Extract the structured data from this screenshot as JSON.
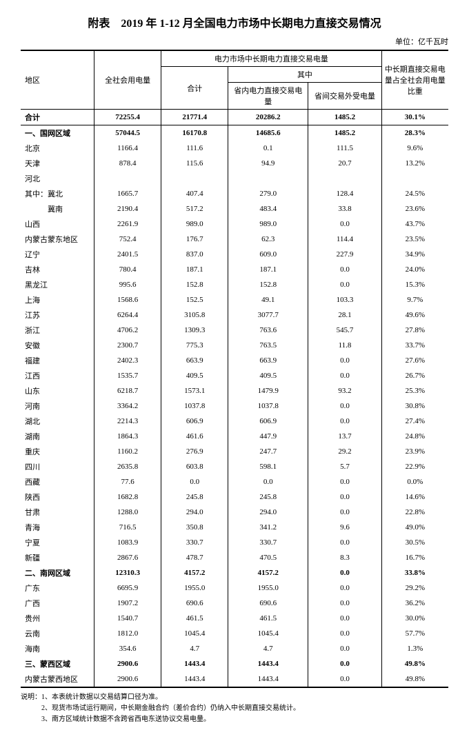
{
  "title": "附表　2019 年 1-12 月全国电力市场中长期电力直接交易情况",
  "unit": "单位：亿千瓦时",
  "headers": {
    "region": "地区",
    "total_consumption": "全社会用电量",
    "market_group": "电力市场中长期电力直接交易电量",
    "sum": "合计",
    "of_which": "其中",
    "intra": "省内电力直接交易电量",
    "inter": "省间交易外受电量",
    "ratio": "中长期直接交易电量占全社会用电量比重"
  },
  "sections": [
    {
      "label": "合计",
      "total": "72255.4",
      "sum": "21771.4",
      "intra": "20286.2",
      "inter": "1485.2",
      "ratio": "30.1%",
      "bold": true,
      "isHeader": true
    },
    {
      "label": "一、国网区域",
      "total": "57044.5",
      "sum": "16170.8",
      "intra": "14685.6",
      "inter": "1485.2",
      "ratio": "28.3%",
      "bold": true
    },
    {
      "label": "北京",
      "total": "1166.4",
      "sum": "111.6",
      "intra": "0.1",
      "inter": "111.5",
      "ratio": "9.6%"
    },
    {
      "label": "天津",
      "total": "878.4",
      "sum": "115.6",
      "intra": "94.9",
      "inter": "20.7",
      "ratio": "13.2%"
    },
    {
      "label": "河北",
      "total": "",
      "sum": "",
      "intra": "",
      "inter": "",
      "ratio": ""
    },
    {
      "label": "其中：冀北",
      "total": "1665.7",
      "sum": "407.4",
      "intra": "279.0",
      "inter": "128.4",
      "ratio": "24.5%"
    },
    {
      "label": "　　　冀南",
      "total": "2190.4",
      "sum": "517.2",
      "intra": "483.4",
      "inter": "33.8",
      "ratio": "23.6%"
    },
    {
      "label": "山西",
      "total": "2261.9",
      "sum": "989.0",
      "intra": "989.0",
      "inter": "0.0",
      "ratio": "43.7%"
    },
    {
      "label": "内蒙古蒙东地区",
      "total": "752.4",
      "sum": "176.7",
      "intra": "62.3",
      "inter": "114.4",
      "ratio": "23.5%"
    },
    {
      "label": "辽宁",
      "total": "2401.5",
      "sum": "837.0",
      "intra": "609.0",
      "inter": "227.9",
      "ratio": "34.9%"
    },
    {
      "label": "吉林",
      "total": "780.4",
      "sum": "187.1",
      "intra": "187.1",
      "inter": "0.0",
      "ratio": "24.0%"
    },
    {
      "label": "黑龙江",
      "total": "995.6",
      "sum": "152.8",
      "intra": "152.8",
      "inter": "0.0",
      "ratio": "15.3%"
    },
    {
      "label": "上海",
      "total": "1568.6",
      "sum": "152.5",
      "intra": "49.1",
      "inter": "103.3",
      "ratio": "9.7%"
    },
    {
      "label": "江苏",
      "total": "6264.4",
      "sum": "3105.8",
      "intra": "3077.7",
      "inter": "28.1",
      "ratio": "49.6%"
    },
    {
      "label": "浙江",
      "total": "4706.2",
      "sum": "1309.3",
      "intra": "763.6",
      "inter": "545.7",
      "ratio": "27.8%"
    },
    {
      "label": "安徽",
      "total": "2300.7",
      "sum": "775.3",
      "intra": "763.5",
      "inter": "11.8",
      "ratio": "33.7%"
    },
    {
      "label": "福建",
      "total": "2402.3",
      "sum": "663.9",
      "intra": "663.9",
      "inter": "0.0",
      "ratio": "27.6%"
    },
    {
      "label": "江西",
      "total": "1535.7",
      "sum": "409.5",
      "intra": "409.5",
      "inter": "0.0",
      "ratio": "26.7%"
    },
    {
      "label": "山东",
      "total": "6218.7",
      "sum": "1573.1",
      "intra": "1479.9",
      "inter": "93.2",
      "ratio": "25.3%"
    },
    {
      "label": "河南",
      "total": "3364.2",
      "sum": "1037.8",
      "intra": "1037.8",
      "inter": "0.0",
      "ratio": "30.8%"
    },
    {
      "label": "湖北",
      "total": "2214.3",
      "sum": "606.9",
      "intra": "606.9",
      "inter": "0.0",
      "ratio": "27.4%"
    },
    {
      "label": "湖南",
      "total": "1864.3",
      "sum": "461.6",
      "intra": "447.9",
      "inter": "13.7",
      "ratio": "24.8%"
    },
    {
      "label": "重庆",
      "total": "1160.2",
      "sum": "276.9",
      "intra": "247.7",
      "inter": "29.2",
      "ratio": "23.9%"
    },
    {
      "label": "四川",
      "total": "2635.8",
      "sum": "603.8",
      "intra": "598.1",
      "inter": "5.7",
      "ratio": "22.9%"
    },
    {
      "label": "西藏",
      "total": "77.6",
      "sum": "0.0",
      "intra": "0.0",
      "inter": "0.0",
      "ratio": "0.0%"
    },
    {
      "label": "陕西",
      "total": "1682.8",
      "sum": "245.8",
      "intra": "245.8",
      "inter": "0.0",
      "ratio": "14.6%"
    },
    {
      "label": "甘肃",
      "total": "1288.0",
      "sum": "294.0",
      "intra": "294.0",
      "inter": "0.0",
      "ratio": "22.8%"
    },
    {
      "label": "青海",
      "total": "716.5",
      "sum": "350.8",
      "intra": "341.2",
      "inter": "9.6",
      "ratio": "49.0%"
    },
    {
      "label": "宁夏",
      "total": "1083.9",
      "sum": "330.7",
      "intra": "330.7",
      "inter": "0.0",
      "ratio": "30.5%"
    },
    {
      "label": "新疆",
      "total": "2867.6",
      "sum": "478.7",
      "intra": "470.5",
      "inter": "8.3",
      "ratio": "16.7%"
    },
    {
      "label": "二、南网区域",
      "total": "12310.3",
      "sum": "4157.2",
      "intra": "4157.2",
      "inter": "0.0",
      "ratio": "33.8%",
      "bold": true
    },
    {
      "label": "广东",
      "total": "6695.9",
      "sum": "1955.0",
      "intra": "1955.0",
      "inter": "0.0",
      "ratio": "29.2%"
    },
    {
      "label": "广西",
      "total": "1907.2",
      "sum": "690.6",
      "intra": "690.6",
      "inter": "0.0",
      "ratio": "36.2%"
    },
    {
      "label": "贵州",
      "total": "1540.7",
      "sum": "461.5",
      "intra": "461.5",
      "inter": "0.0",
      "ratio": "30.0%"
    },
    {
      "label": "云南",
      "total": "1812.0",
      "sum": "1045.4",
      "intra": "1045.4",
      "inter": "0.0",
      "ratio": "57.7%"
    },
    {
      "label": "海南",
      "total": "354.6",
      "sum": "4.7",
      "intra": "4.7",
      "inter": "0.0",
      "ratio": "1.3%"
    },
    {
      "label": "三、蒙西区域",
      "total": "2900.6",
      "sum": "1443.4",
      "intra": "1443.4",
      "inter": "0.0",
      "ratio": "49.8%",
      "bold": true
    },
    {
      "label": "内蒙古蒙西地区",
      "total": "2900.6",
      "sum": "1443.4",
      "intra": "1443.4",
      "inter": "0.0",
      "ratio": "49.8%"
    }
  ],
  "notes": [
    "说明：1、本表统计数据以交易结算口径为准。",
    "　　　2、现货市场试运行期间，中长期金融合约（差价合约）仍纳入中长期直接交易统计。",
    "　　　3、南方区域统计数据不含跨省西电东送协议交易电量。"
  ]
}
